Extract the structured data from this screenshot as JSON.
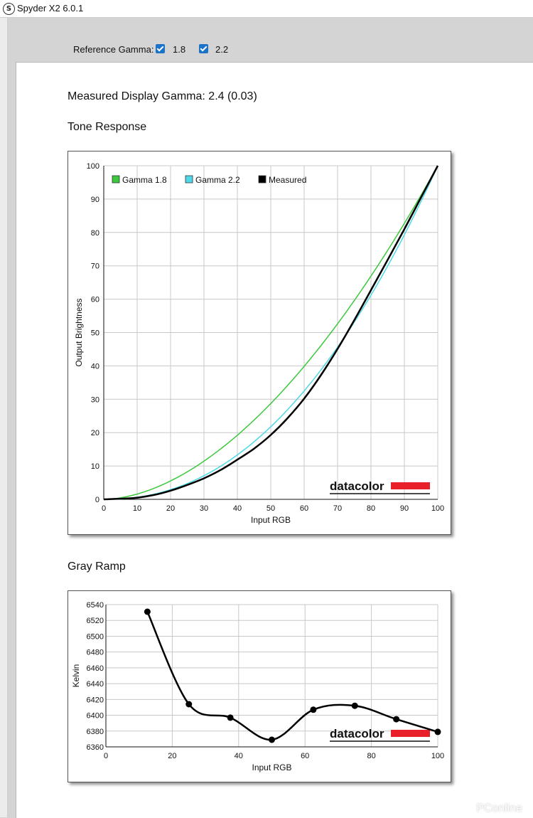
{
  "window": {
    "title": "Spyder X2 6.0.1",
    "app_icon": "S"
  },
  "reference_gamma": {
    "label": "Reference Gamma:",
    "options": [
      {
        "label": "1.8",
        "checked": true
      },
      {
        "label": "2.2",
        "checked": true
      }
    ]
  },
  "measured": {
    "text": "Measured Display Gamma: 2.4 (0.03)"
  },
  "sections": {
    "tone": "Tone Response",
    "gray": "Gray Ramp"
  },
  "brand": {
    "logo_text": "datacolor",
    "logo_color": "#e8202a"
  },
  "watermark": "PConline",
  "chart_data": [
    {
      "type": "line",
      "xlabel": "Input RGB",
      "ylabel": "Output Brightness",
      "xlim": [
        0,
        100
      ],
      "ylim": [
        0,
        100
      ],
      "xticks": [
        0,
        10,
        20,
        30,
        40,
        50,
        60,
        70,
        80,
        90,
        100
      ],
      "yticks": [
        0,
        10,
        20,
        30,
        40,
        50,
        60,
        70,
        80,
        90,
        100
      ],
      "grid": true,
      "legend_position": "top-left",
      "series": [
        {
          "name": "Gamma 1.8",
          "color": "#3cc83c",
          "gamma": 1.8
        },
        {
          "name": "Gamma 2.2",
          "color": "#4fd8e8",
          "gamma": 2.2
        },
        {
          "name": "Measured",
          "color": "#000000",
          "x": [
            0,
            5,
            10,
            15,
            20,
            25,
            30,
            35,
            40,
            45,
            50,
            55,
            60,
            65,
            70,
            75,
            80,
            85,
            90,
            95,
            100
          ],
          "y": [
            0,
            0.2,
            0.5,
            1.3,
            2.6,
            4.3,
            6.3,
            8.8,
            11.9,
            15.2,
            19.3,
            24.3,
            30.2,
            37.2,
            45.1,
            53.7,
            62.7,
            71.8,
            81.0,
            90.5,
            100
          ]
        }
      ]
    },
    {
      "type": "line",
      "xlabel": "Input RGB",
      "ylabel": "Kelvin",
      "xlim": [
        0,
        100
      ],
      "ylim": [
        6360,
        6540
      ],
      "xticks": [
        0,
        20,
        40,
        60,
        80,
        100
      ],
      "yticks": [
        6360,
        6380,
        6400,
        6420,
        6440,
        6460,
        6480,
        6500,
        6520,
        6540
      ],
      "grid": true,
      "series": [
        {
          "color": "#000000",
          "x": [
            12.5,
            25,
            37.5,
            50,
            62.5,
            75,
            87.5,
            100
          ],
          "y": [
            6531,
            6414,
            6397,
            6369,
            6407,
            6412,
            6395,
            6379
          ]
        }
      ]
    }
  ]
}
